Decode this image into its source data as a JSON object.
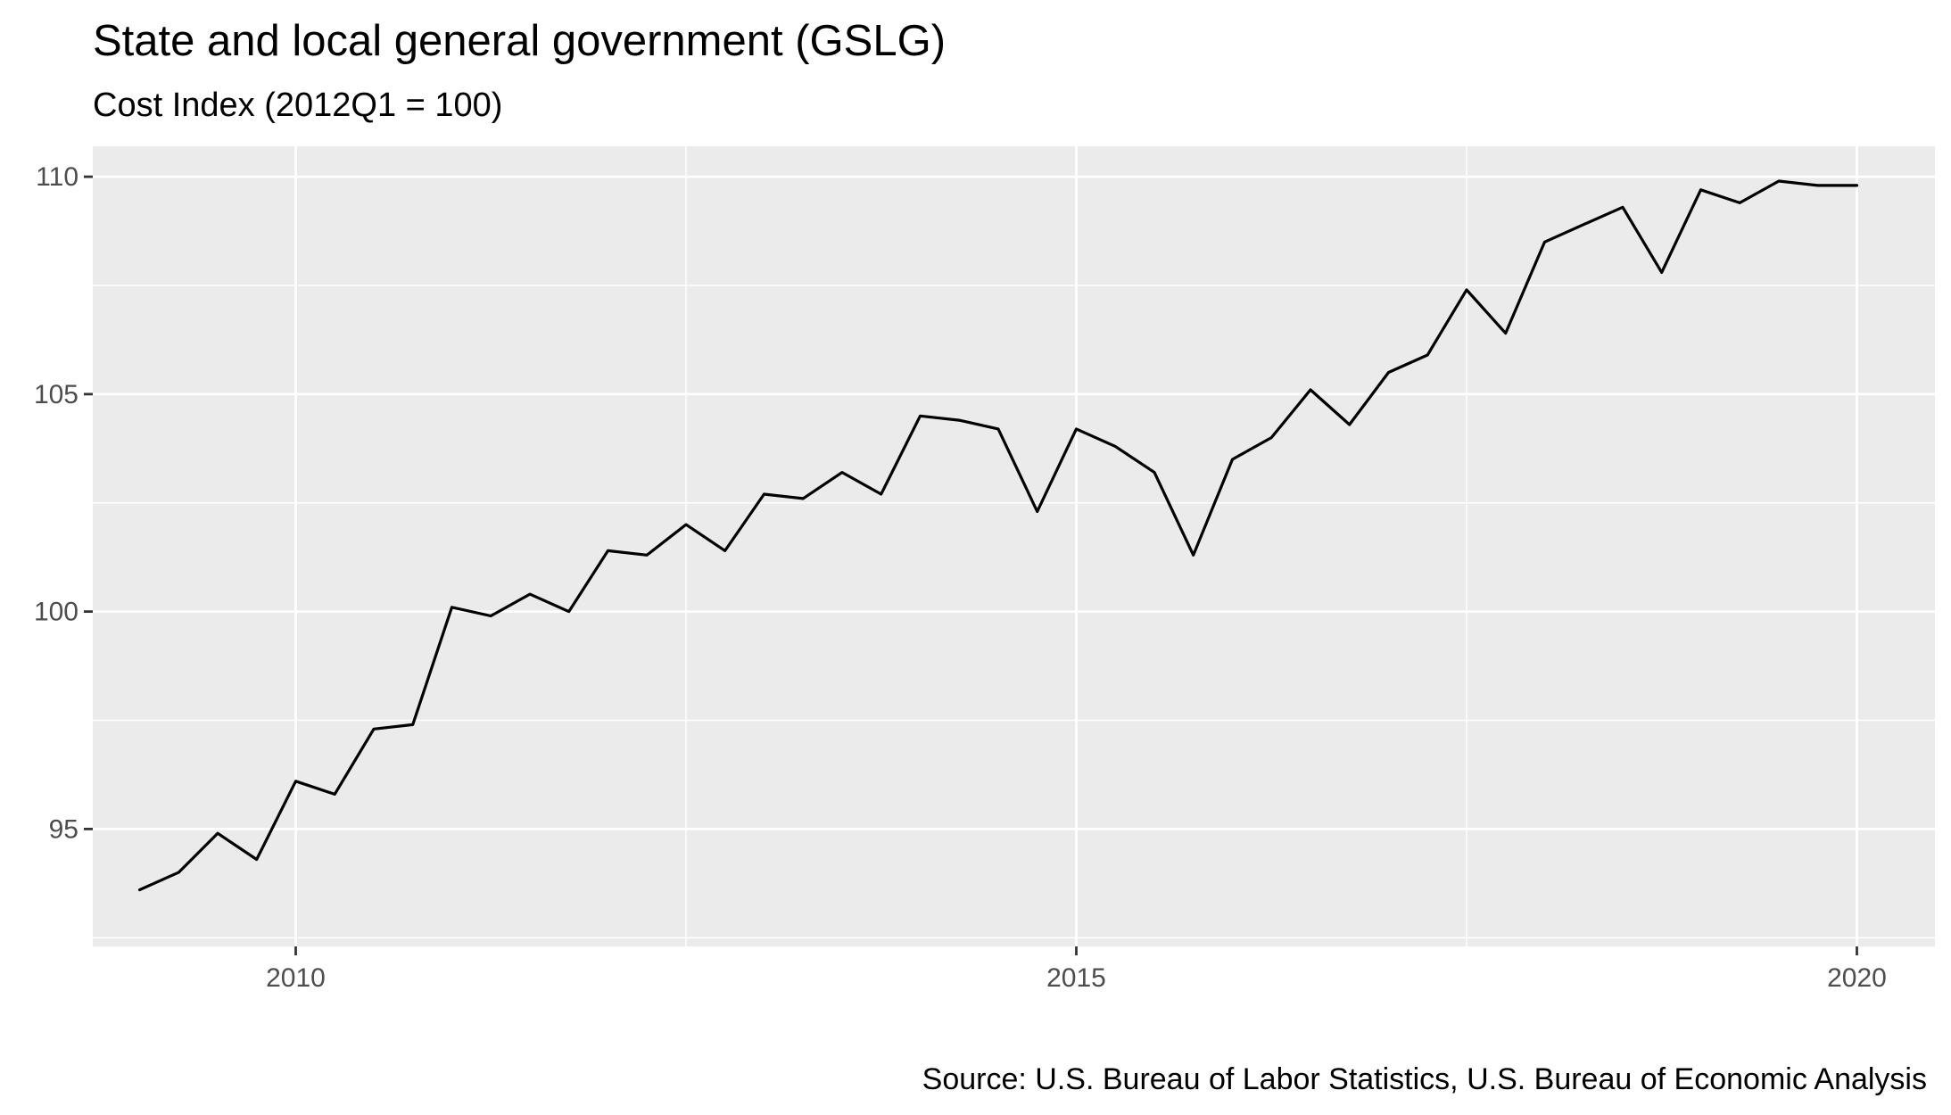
{
  "chart_data": {
    "type": "line",
    "title": "State and local general government (GSLG)",
    "subtitle": "Cost Index (2012Q1 = 100)",
    "caption": "Source: U.S. Bureau of Labor Statistics, U.S. Bureau of Economic Analysis",
    "xlabel": "",
    "ylabel": "",
    "x_ticks": [
      2010,
      2015,
      2020
    ],
    "y_ticks": [
      95,
      100,
      105,
      110
    ],
    "xlim": [
      2008.7,
      2020.5
    ],
    "ylim": [
      92.3,
      110.7
    ],
    "grid": true,
    "legend": "none",
    "colors": {
      "panel": "#ebebeb",
      "line": "#000000",
      "grid": "#ffffff"
    },
    "series": [
      {
        "x": [
          2009.0,
          2009.25,
          2009.5,
          2009.75,
          2010.0,
          2010.25,
          2010.5,
          2010.75,
          2011.0,
          2011.25,
          2011.5,
          2011.75,
          2012.0,
          2012.25,
          2012.5,
          2012.75,
          2013.0,
          2013.25,
          2013.5,
          2013.75,
          2014.0,
          2014.25,
          2014.5,
          2014.75,
          2015.0,
          2015.25,
          2015.5,
          2015.75,
          2016.0,
          2016.25,
          2016.5,
          2016.75,
          2017.0,
          2017.25,
          2017.5,
          2017.75,
          2018.0,
          2018.25,
          2018.5,
          2018.75,
          2019.0,
          2019.25,
          2019.5,
          2019.75,
          2020.0
        ],
        "values": [
          93.6,
          94.0,
          94.9,
          94.3,
          96.1,
          95.8,
          97.3,
          97.4,
          100.1,
          99.9,
          100.4,
          100.0,
          101.4,
          101.3,
          102.0,
          101.4,
          102.7,
          102.6,
          103.2,
          102.7,
          104.5,
          104.4,
          104.2,
          102.3,
          104.2,
          103.8,
          103.2,
          101.3,
          103.5,
          104.0,
          105.1,
          104.3,
          105.5,
          105.9,
          107.4,
          106.4,
          108.5,
          108.9,
          109.3,
          107.8,
          109.7,
          109.4,
          109.9,
          109.8,
          109.8
        ]
      }
    ]
  }
}
